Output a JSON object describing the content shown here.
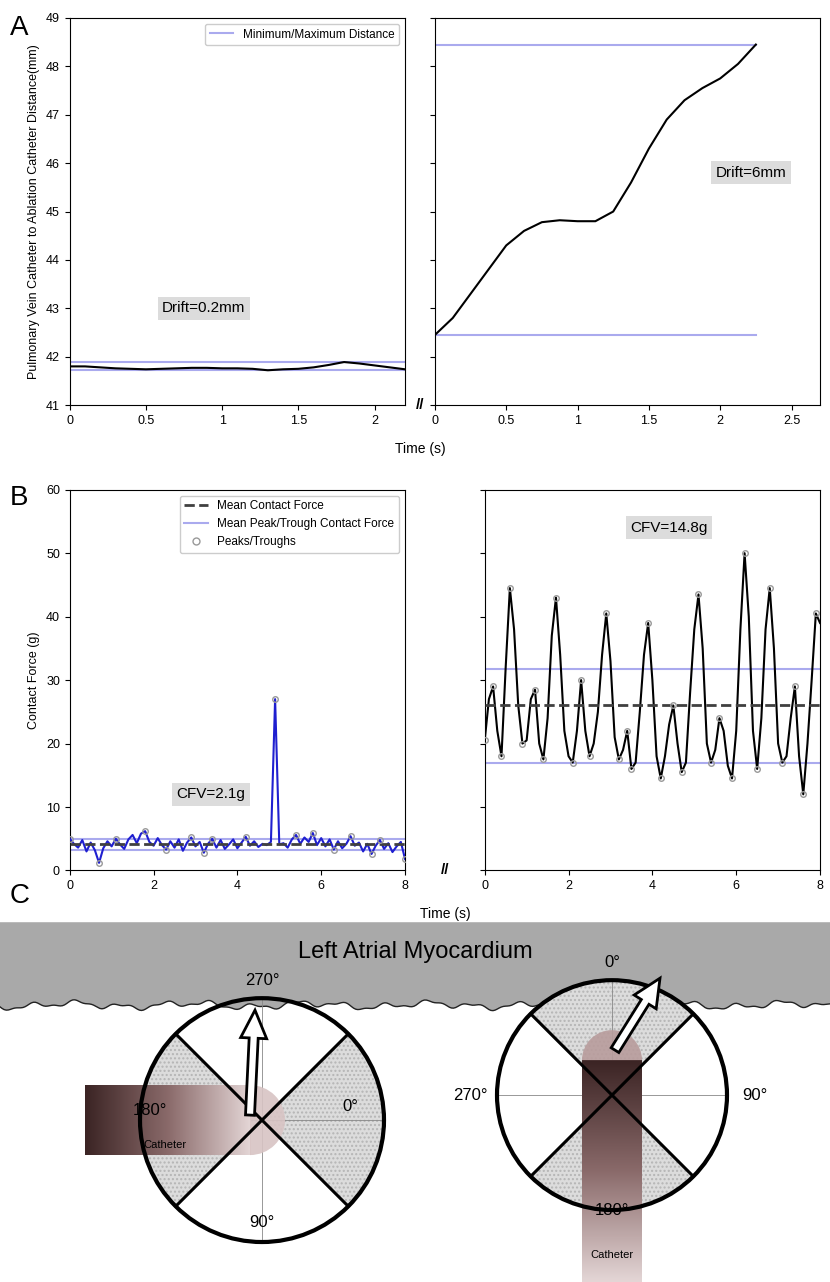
{
  "panel_labels": [
    "A",
    "B",
    "C"
  ],
  "axis_break": "//",
  "chart_data": [
    {
      "type": "line",
      "y_label": "Pulmonary Vein Catheter to Ablation Catheter Distance(mm)",
      "x_label": "Time (s)",
      "annotation": "Drift=0.2mm",
      "color": "#000000",
      "x": [
        0,
        0.1,
        0.2,
        0.3,
        0.4,
        0.5,
        0.6,
        0.7,
        0.8,
        0.9,
        1,
        1.1,
        1.2,
        1.3,
        1.4,
        1.5,
        1.6,
        1.7,
        1.8,
        1.9,
        2,
        2.1,
        2.2
      ],
      "values": [
        41.8,
        41.8,
        41.78,
        41.76,
        41.75,
        41.74,
        41.75,
        41.76,
        41.77,
        41.77,
        41.76,
        41.76,
        41.75,
        41.72,
        41.74,
        41.75,
        41.78,
        41.83,
        41.89,
        41.86,
        41.82,
        41.78,
        41.74
      ],
      "min_max": {
        "name": "Minimum/Maximum Distance",
        "values": [
          41.72,
          41.89
        ],
        "color": "#aaaaee",
        "line_style": "solid"
      },
      "xlim": [
        0,
        2.2
      ],
      "ylim": [
        41,
        49
      ],
      "xticks": [
        0,
        0.5,
        1,
        1.5,
        2
      ],
      "yticks": [
        41,
        42,
        43,
        44,
        45,
        46,
        47,
        48,
        49
      ],
      "legend": "upper right"
    },
    {
      "type": "line",
      "annotation": "Drift=6mm",
      "color": "#000000",
      "x": [
        0,
        0.125,
        0.25,
        0.375,
        0.5,
        0.625,
        0.75,
        0.875,
        1,
        1.125,
        1.25,
        1.375,
        1.5,
        1.625,
        1.75,
        1.875,
        2,
        2.125,
        2.25
      ],
      "values": [
        42.45,
        42.8,
        43.3,
        43.8,
        44.3,
        44.6,
        44.78,
        44.82,
        44.8,
        44.8,
        45.0,
        45.6,
        46.3,
        46.9,
        47.3,
        47.55,
        47.75,
        48.05,
        48.45
      ],
      "min_max": {
        "name": "Minimum/Maximum Distance",
        "values": [
          42.45,
          48.45
        ],
        "color": "#aaaaee",
        "line_style": "solid"
      },
      "xlim": [
        0,
        2.7
      ],
      "ylim": [
        41,
        49
      ],
      "xticks": [
        0,
        0.5,
        1,
        1.5,
        2,
        2.5
      ],
      "yticks": [
        41,
        42,
        43,
        44,
        45,
        46,
        47,
        48,
        49
      ],
      "tick_labels": "x"
    },
    {
      "type": "line",
      "y_label": "Contact Force (g)",
      "x_label": "Time (s)",
      "annotation": "CFV=2.1g",
      "color": "#1f1fd0",
      "x": [
        0,
        0.1,
        0.2,
        0.3,
        0.4,
        0.5,
        0.6,
        0.7,
        0.8,
        0.9,
        1,
        1.1,
        1.2,
        1.3,
        1.4,
        1.5,
        1.6,
        1.7,
        1.8,
        1.9,
        2,
        2.1,
        2.2,
        2.3,
        2.4,
        2.5,
        2.6,
        2.7,
        2.8,
        2.9,
        3,
        3.1,
        3.2,
        3.3,
        3.4,
        3.5,
        3.6,
        3.7,
        3.8,
        3.9,
        4,
        4.1,
        4.2,
        4.3,
        4.4,
        4.5,
        4.6,
        4.7,
        4.8,
        4.9,
        5,
        5.1,
        5.2,
        5.3,
        5.4,
        5.5,
        5.6,
        5.7,
        5.8,
        5.9,
        6,
        6.1,
        6.2,
        6.3,
        6.4,
        6.5,
        6.6,
        6.7,
        6.8,
        6.9,
        7,
        7.1,
        7.2,
        7.3,
        7.4,
        7.5,
        7.6,
        7.7,
        7.8,
        7.9,
        8
      ],
      "values": [
        5.0,
        4.2,
        3.6,
        4.8,
        3.0,
        4.4,
        3.2,
        1.2,
        3.5,
        4.6,
        3.8,
        5.0,
        4.1,
        3.4,
        4.9,
        5.6,
        4.3,
        5.8,
        6.2,
        4.5,
        3.9,
        5.1,
        4.0,
        3.3,
        4.6,
        3.6,
        4.9,
        3.1,
        4.4,
        5.2,
        3.8,
        4.5,
        2.8,
        4.2,
        5.0,
        3.6,
        4.8,
        3.4,
        4.1,
        4.9,
        3.5,
        4.4,
        5.3,
        3.9,
        4.6,
        3.7,
        4.2,
        4.0,
        4.5,
        27.0,
        4.1,
        4.3,
        3.6,
        4.9,
        5.6,
        4.2,
        5.2,
        4.5,
        5.9,
        4.0,
        5.1,
        3.8,
        4.9,
        3.3,
        4.6,
        3.5,
        4.2,
        5.4,
        3.9,
        4.4,
        3.0,
        4.2,
        2.6,
        3.9,
        4.8,
        3.4,
        4.3,
        2.9,
        3.8,
        4.5,
        1.8
      ],
      "mean": {
        "name": "Mean Contact Force",
        "value": 4.2,
        "color": "#404040",
        "line_style": "dashed"
      },
      "peak_trough_means": {
        "name": "Mean Peak/Trough Contact Force",
        "values": [
          5.0,
          3.3
        ],
        "color": "#aaaaee",
        "line_style": "solid"
      },
      "peaks_troughs": {
        "name": "Peaks/Troughs",
        "marker": "circle",
        "color": "#999999",
        "x": [
          0,
          0.7,
          1.1,
          1.8,
          2.3,
          2.9,
          3.2,
          3.4,
          4.2,
          4.9,
          5.4,
          5.8,
          6.3,
          6.7,
          7.2,
          7.4,
          8
        ],
        "values": [
          5.0,
          1.2,
          5.0,
          6.2,
          3.3,
          5.2,
          2.8,
          5.0,
          5.3,
          27.0,
          5.6,
          5.9,
          3.3,
          5.4,
          2.6,
          4.8,
          1.8
        ]
      },
      "xlim": [
        0,
        8
      ],
      "ylim": [
        0,
        60
      ],
      "xticks": [
        0,
        2,
        4,
        6,
        8
      ],
      "yticks": [
        0,
        10,
        20,
        30,
        40,
        50,
        60
      ],
      "legend": "upper right"
    },
    {
      "type": "line",
      "annotation": "CFV=14.8g",
      "color": "#000000",
      "x": [
        0,
        0.1,
        0.2,
        0.3,
        0.4,
        0.5,
        0.6,
        0.7,
        0.8,
        0.9,
        1,
        1.1,
        1.2,
        1.3,
        1.4,
        1.5,
        1.6,
        1.7,
        1.8,
        1.9,
        2,
        2.1,
        2.2,
        2.3,
        2.4,
        2.5,
        2.6,
        2.7,
        2.8,
        2.9,
        3,
        3.1,
        3.2,
        3.3,
        3.4,
        3.5,
        3.6,
        3.7,
        3.8,
        3.9,
        4,
        4.1,
        4.2,
        4.3,
        4.4,
        4.5,
        4.6,
        4.7,
        4.8,
        4.9,
        5,
        5.1,
        5.2,
        5.3,
        5.4,
        5.5,
        5.6,
        5.7,
        5.8,
        5.9,
        6,
        6.1,
        6.2,
        6.3,
        6.4,
        6.5,
        6.6,
        6.7,
        6.8,
        6.9,
        7,
        7.1,
        7.2,
        7.3,
        7.4,
        7.5,
        7.6,
        7.7,
        7.8,
        7.9,
        8
      ],
      "values": [
        20.5,
        27,
        29,
        22,
        18,
        32,
        44.5,
        38,
        26,
        20,
        20.5,
        27,
        28.5,
        20,
        17.5,
        24,
        37,
        43,
        34,
        22,
        18,
        17,
        22,
        30,
        22,
        18,
        20,
        25,
        34,
        40.5,
        33,
        21,
        17.5,
        19,
        22,
        16,
        17,
        25,
        34,
        39,
        30,
        18,
        14.5,
        18,
        23,
        26,
        20,
        15.5,
        17,
        28,
        38,
        43.5,
        35,
        20,
        17,
        19,
        24,
        22,
        16.5,
        14.5,
        22,
        38,
        50,
        40,
        22,
        16,
        24,
        38,
        44.5,
        35,
        20,
        17,
        18,
        24,
        29,
        18,
        12,
        20,
        30,
        40.5,
        39
      ],
      "mean": {
        "name": "Mean Contact Force",
        "value": 26.1,
        "color": "#404040",
        "line_style": "dashed"
      },
      "peak_trough_means": {
        "name": "Mean Peak/Trough Contact Force",
        "values": [
          31.8,
          16.9
        ],
        "color": "#aaaaee",
        "line_style": "solid"
      },
      "peaks_troughs": {
        "name": "Peaks/Troughs",
        "marker": "circle",
        "color": "#999999",
        "x": [
          0,
          0.2,
          0.4,
          0.6,
          0.9,
          1.2,
          1.4,
          1.7,
          2.1,
          2.3,
          2.5,
          2.9,
          3.2,
          3.4,
          3.5,
          3.9,
          4.2,
          4.5,
          4.7,
          5.1,
          5.4,
          5.6,
          5.9,
          6.2,
          6.5,
          6.8,
          7.1,
          7.4,
          7.6,
          7.9
        ],
        "values": [
          20.5,
          29,
          18,
          44.5,
          20,
          28.5,
          17.5,
          43,
          17,
          30,
          18,
          40.5,
          17.5,
          22,
          16,
          39,
          14.5,
          26,
          15.5,
          43.5,
          17,
          24,
          14.5,
          50,
          16,
          44.5,
          17,
          29,
          12,
          40.5
        ]
      },
      "xlim": [
        0,
        8
      ],
      "ylim": [
        0,
        60
      ],
      "xticks": [
        0,
        2,
        4,
        6,
        8
      ],
      "yticks": [
        0,
        10,
        20,
        30,
        40,
        50,
        60
      ],
      "tick_labels": "x"
    }
  ],
  "diagram": {
    "title": "Left Atrial Myocardium",
    "orientations": [
      {
        "labels": {
          "top": "270°",
          "right": "0°",
          "bottom": "90°",
          "left": "180°"
        },
        "catheter": "Catheter"
      },
      {
        "labels": {
          "top": "0°",
          "left": "270°",
          "right": "90°",
          "bottom": "180°"
        },
        "catheter": "Catheter"
      }
    ]
  }
}
